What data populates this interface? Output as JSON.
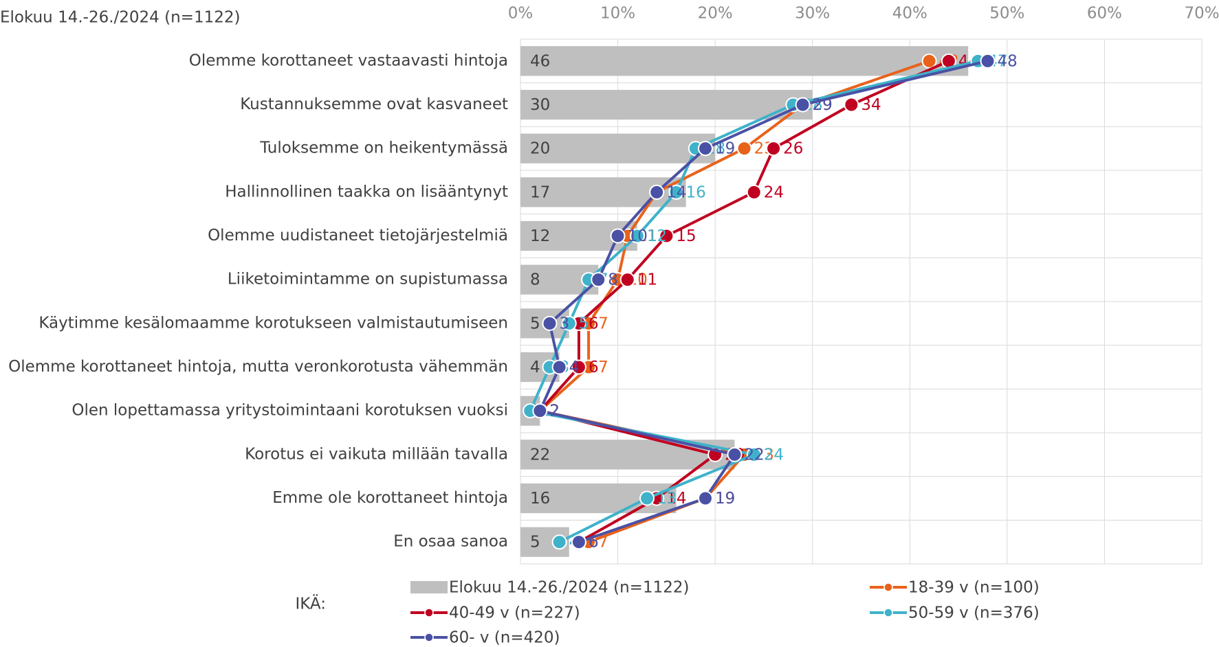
{
  "chart_data": {
    "type": "bar-line",
    "orientation": "horizontal",
    "title": "Elokuu 14.-26./2024 (n=1122)",
    "legend_title": "IKÄ:",
    "categories": [
      "Olemme korottaneet vastaavasti hintoja",
      "Kustannuksemme ovat kasvaneet",
      "Tuloksemme on heikentymässä",
      "Hallinnollinen taakka on lisääntynyt",
      "Olemme uudistaneet tietojärjestelmiä",
      "Liiketoimintamme on supistumassa",
      "Käytimme kesälomaamme korotukseen valmistautumiseen",
      "Olemme korottaneet hintoja, mutta veronkorotusta vähemmän",
      "Olen lopettamassa yritystoimintaani korotuksen vuoksi",
      "Korotus ei vaikuta millään tavalla",
      "Emme ole korottaneet hintoja",
      "En osaa sanoa"
    ],
    "series": [
      {
        "name": "Elokuu 14.-26./2024 (n=1122)",
        "type": "bar",
        "color": "#bfbfbf",
        "values": [
          46,
          30,
          20,
          17,
          12,
          8,
          5,
          4,
          2,
          22,
          16,
          5
        ]
      },
      {
        "name": "18-39 v (n=100)",
        "type": "line",
        "color": "#e8621a",
        "values": [
          42,
          29,
          23,
          14,
          11,
          10,
          7,
          7,
          2,
          23,
          19,
          7
        ]
      },
      {
        "name": "40-49 v (n=227)",
        "type": "line",
        "color": "#c00020",
        "values": [
          44,
          34,
          26,
          24,
          15,
          11,
          6,
          6,
          2,
          20,
          14,
          6
        ]
      },
      {
        "name": "50-59 v (n=376)",
        "type": "line",
        "color": "#3fb2ca",
        "values": [
          47,
          28,
          18,
          16,
          12,
          7,
          5,
          3,
          1,
          24,
          13,
          4
        ]
      },
      {
        "name": "60- v (n=420)",
        "type": "line",
        "color": "#4a51a5",
        "values": [
          48,
          29,
          19,
          14,
          10,
          8,
          3,
          4,
          2,
          22,
          19,
          6
        ]
      }
    ],
    "xlim": [
      0,
      70
    ],
    "xticks": [
      {
        "value": 0,
        "label": "0%"
      },
      {
        "value": 10,
        "label": "10%"
      },
      {
        "value": 20,
        "label": "20%"
      },
      {
        "value": 30,
        "label": "30%"
      },
      {
        "value": 40,
        "label": "40%"
      },
      {
        "value": 50,
        "label": "50%"
      },
      {
        "value": 60,
        "label": "60%"
      },
      {
        "value": 70,
        "label": "70%"
      }
    ],
    "grid": true
  }
}
